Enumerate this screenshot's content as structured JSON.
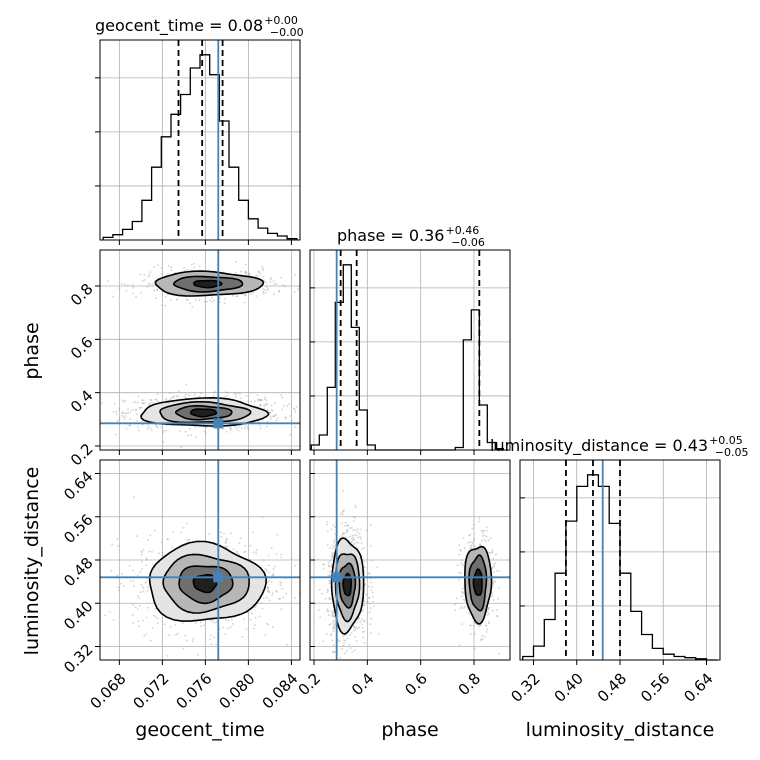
{
  "colors": {
    "truth": "#4682b4",
    "grid": "#b0b0b0",
    "line": "#000000",
    "scatter": "#9a9a9a"
  },
  "chart_data": {
    "type": "corner",
    "grid": true,
    "parameters": [
      {
        "key": "geocent_time",
        "label": "geocent_time",
        "range": [
          0.0662,
          0.0848
        ],
        "ticks": [
          0.068,
          0.072,
          0.076,
          0.08,
          0.084
        ],
        "tick_labels": [
          "0.068",
          "0.072",
          "0.076",
          "0.080",
          "0.084"
        ],
        "truth": 0.0772,
        "quantiles": [
          0.0735,
          0.0757,
          0.0776
        ]
      },
      {
        "key": "phase",
        "label": "phase",
        "range": [
          0.185,
          0.935
        ],
        "ticks": [
          0.2,
          0.4,
          0.6,
          0.8
        ],
        "tick_labels": [
          "0.2",
          "0.4",
          "0.6",
          "0.8"
        ],
        "truth": 0.285,
        "quantiles": [
          0.3,
          0.36,
          0.82
        ]
      },
      {
        "key": "luminosity_distance",
        "label": "luminosity_distance",
        "range": [
          0.295,
          0.665
        ],
        "ticks": [
          0.32,
          0.4,
          0.48,
          0.56,
          0.64
        ],
        "tick_labels": [
          "0.32",
          "0.40",
          "0.48",
          "0.56",
          "0.64"
        ],
        "truth": 0.448,
        "quantiles": [
          0.38,
          0.43,
          0.48
        ]
      }
    ],
    "titles": [
      {
        "base": "geocent_time = 0.08",
        "plus": "+0.00",
        "minus": "−0.00"
      },
      {
        "base": "phase = 0.36",
        "plus": "+0.46",
        "minus": "−0.06"
      },
      {
        "base": "luminosity_distance = 0.43",
        "plus": "+0.05",
        "minus": "−0.05"
      }
    ],
    "histograms": {
      "geocent_time": {
        "edges": [
          0.0665,
          0.0674,
          0.0683,
          0.0692,
          0.0701,
          0.071,
          0.0719,
          0.0728,
          0.0737,
          0.0746,
          0.0755,
          0.0764,
          0.0773,
          0.0782,
          0.0791,
          0.08,
          0.0809,
          0.0818,
          0.0827,
          0.0836,
          0.0845
        ],
        "counts": [
          2,
          4,
          8,
          14,
          30,
          55,
          78,
          95,
          110,
          130,
          140,
          125,
          90,
          55,
          30,
          16,
          9,
          5,
          3,
          1
        ]
      },
      "phase": {
        "edges": [
          0.19,
          0.22,
          0.25,
          0.28,
          0.31,
          0.34,
          0.37,
          0.4,
          0.43,
          0.46,
          0.49,
          0.52,
          0.55,
          0.58,
          0.61,
          0.64,
          0.67,
          0.7,
          0.73,
          0.76,
          0.79,
          0.82,
          0.85,
          0.88,
          0.91
        ],
        "counts": [
          4,
          12,
          50,
          118,
          148,
          98,
          32,
          4,
          0,
          0,
          0,
          0,
          0,
          0,
          0,
          0,
          0,
          0,
          2,
          88,
          112,
          36,
          6,
          1
        ]
      },
      "luminosity_distance": {
        "edges": [
          0.3,
          0.32,
          0.34,
          0.36,
          0.38,
          0.4,
          0.42,
          0.44,
          0.46,
          0.48,
          0.5,
          0.52,
          0.54,
          0.56,
          0.58,
          0.6,
          0.62,
          0.64,
          0.66
        ],
        "counts": [
          3,
          12,
          35,
          75,
          120,
          150,
          160,
          150,
          118,
          75,
          42,
          22,
          10,
          5,
          3,
          2,
          1,
          0
        ]
      }
    },
    "contours": [
      {
        "x": "geocent_time",
        "y": "phase",
        "modes": [
          {
            "cx": 0.0758,
            "cy": 0.325,
            "levels": [
              [
                0.0058,
                0.052
              ],
              [
                0.0042,
                0.038
              ],
              [
                0.0026,
                0.025
              ],
              [
                0.0012,
                0.014
              ]
            ]
          },
          {
            "cx": 0.0762,
            "cy": 0.808,
            "levels": [
              [
                0.005,
                0.045
              ],
              [
                0.0032,
                0.028
              ],
              [
                0.0013,
                0.013
              ]
            ]
          }
        ]
      },
      {
        "x": "geocent_time",
        "y": "luminosity_distance",
        "modes": [
          {
            "cx": 0.076,
            "cy": 0.437,
            "levels": [
              [
                0.0054,
                0.072
              ],
              [
                0.004,
                0.052
              ],
              [
                0.0025,
                0.034
              ],
              [
                0.0011,
                0.016
              ]
            ]
          }
        ]
      },
      {
        "x": "phase",
        "y": "luminosity_distance",
        "modes": [
          {
            "cx": 0.325,
            "cy": 0.434,
            "levels": [
              [
                0.06,
                0.085
              ],
              [
                0.045,
                0.062
              ],
              [
                0.03,
                0.04
              ],
              [
                0.015,
                0.02
              ]
            ]
          },
          {
            "cx": 0.815,
            "cy": 0.438,
            "levels": [
              [
                0.05,
                0.07
              ],
              [
                0.032,
                0.05
              ],
              [
                0.016,
                0.024
              ]
            ]
          }
        ]
      }
    ]
  }
}
